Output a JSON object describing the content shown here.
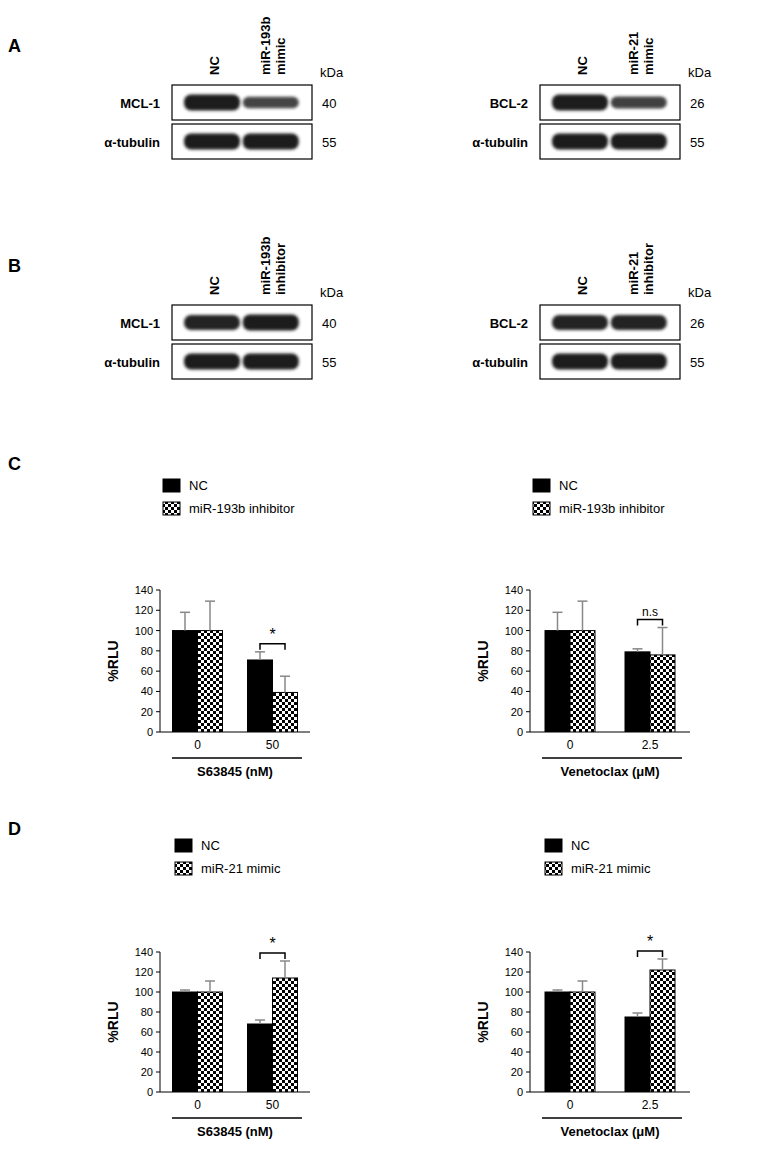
{
  "panel_labels": [
    "A",
    "B",
    "C",
    "D"
  ],
  "blots": [
    {
      "unit": "kDa",
      "lanes": [
        [
          "NC"
        ],
        [
          "miR-193b",
          "mimic"
        ]
      ],
      "rows": [
        {
          "protein": "MCL-1",
          "kda": 40,
          "intensity": [
            1,
            0.72
          ]
        },
        {
          "protein": "α-tubulin",
          "kda": 55,
          "intensity": [
            1,
            1
          ]
        }
      ]
    },
    {
      "unit": "kDa",
      "lanes": [
        [
          "NC"
        ],
        [
          "miR-21",
          "mimic"
        ]
      ],
      "rows": [
        {
          "protein": "BCL-2",
          "kda": 26,
          "intensity": [
            1,
            0.75
          ]
        },
        {
          "protein": "α-tubulin",
          "kda": 55,
          "intensity": [
            1,
            1
          ]
        }
      ]
    },
    {
      "unit": "kDa",
      "lanes": [
        [
          "NC"
        ],
        [
          "miR-193b",
          "inhibitor"
        ]
      ],
      "rows": [
        {
          "protein": "MCL-1",
          "kda": 40,
          "intensity": [
            0.95,
            1
          ]
        },
        {
          "protein": "α-tubulin",
          "kda": 55,
          "intensity": [
            1,
            1
          ]
        }
      ]
    },
    {
      "unit": "kDa",
      "lanes": [
        [
          "NC"
        ],
        [
          "miR-21",
          "inhibitor"
        ]
      ],
      "rows": [
        {
          "protein": "BCL-2",
          "kda": 26,
          "intensity": [
            0.95,
            0.95
          ]
        },
        {
          "protein": "α-tubulin",
          "kda": 55,
          "intensity": [
            1,
            1
          ]
        }
      ]
    }
  ],
  "chart_data": [
    {
      "type": "bar",
      "y_label": "%RLU",
      "x_label": "S63845 (nM)",
      "categories": [
        "0",
        "50"
      ],
      "series": [
        {
          "name": "NC",
          "color": "#000000",
          "values": [
            100,
            71
          ],
          "errors": [
            18,
            8
          ]
        },
        {
          "name": "miR-193b inhibitor",
          "color": "#000000",
          "values": [
            100,
            39
          ],
          "errors": [
            29,
            16
          ]
        }
      ],
      "ylim": [
        0,
        140
      ],
      "yticks": [
        0,
        20,
        40,
        60,
        80,
        100,
        120,
        140
      ],
      "annotations": [
        {
          "text": "*",
          "category": "50"
        }
      ]
    },
    {
      "type": "bar",
      "y_label": "%RLU",
      "x_label": "Venetoclax (μM)",
      "categories": [
        "0",
        "2.5"
      ],
      "series": [
        {
          "name": "NC",
          "color": "#000000",
          "values": [
            100,
            79
          ],
          "errors": [
            18,
            3
          ]
        },
        {
          "name": "miR-193b inhibitor",
          "color": "#000000",
          "values": [
            100,
            76
          ],
          "errors": [
            29,
            27
          ]
        }
      ],
      "ylim": [
        0,
        140
      ],
      "yticks": [
        0,
        20,
        40,
        60,
        80,
        100,
        120,
        140
      ],
      "annotations": [
        {
          "text": "n.s",
          "category": "2.5"
        }
      ]
    },
    {
      "type": "bar",
      "y_label": "%RLU",
      "x_label": "S63845 (nM)",
      "categories": [
        "0",
        "50"
      ],
      "series": [
        {
          "name": "NC",
          "color": "#000000",
          "values": [
            100,
            68
          ],
          "errors": [
            2,
            4
          ]
        },
        {
          "name": "miR-21 mimic",
          "color": "#000000",
          "values": [
            100,
            114
          ],
          "errors": [
            11,
            17
          ]
        }
      ],
      "ylim": [
        0,
        140
      ],
      "yticks": [
        0,
        20,
        40,
        60,
        80,
        100,
        120,
        140
      ],
      "annotations": [
        {
          "text": "*",
          "category": "50"
        }
      ]
    },
    {
      "type": "bar",
      "y_label": "%RLU",
      "x_label": "Venetoclax (μM)",
      "categories": [
        "0",
        "2.5"
      ],
      "series": [
        {
          "name": "NC",
          "color": "#000000",
          "values": [
            100,
            75
          ],
          "errors": [
            2,
            4
          ]
        },
        {
          "name": "miR-21 mimic",
          "color": "#000000",
          "values": [
            100,
            122
          ],
          "errors": [
            11,
            11
          ]
        }
      ],
      "ylim": [
        0,
        140
      ],
      "yticks": [
        0,
        20,
        40,
        60,
        80,
        100,
        120,
        140
      ],
      "annotations": [
        {
          "text": "*",
          "category": "2.5"
        }
      ]
    }
  ]
}
